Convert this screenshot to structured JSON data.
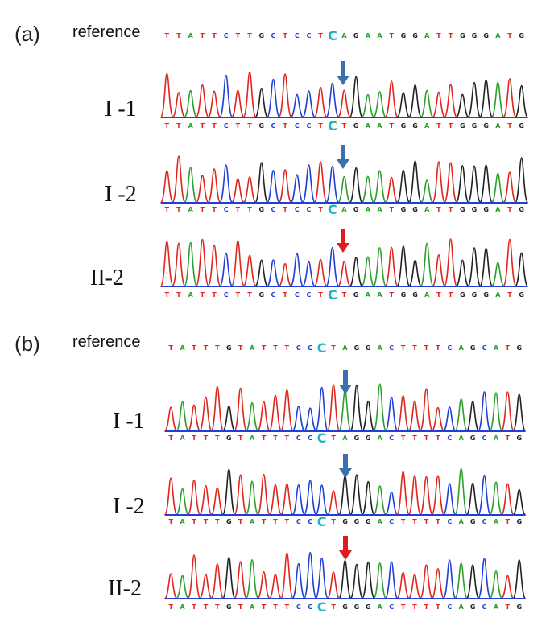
{
  "panel_a": {
    "label": "(a)",
    "reference_label": "reference",
    "highlight_index": 14,
    "reference_seq": "TTATTCTTGCTCCTCAGAATGGATTGGGATG",
    "samples": [
      {
        "label": "I -1",
        "seq": "TTATTCTTGCTCCTCTGAATGGATTGGGATG",
        "arrow_color": "#3a6fb0"
      },
      {
        "label": "I -2",
        "seq": "TTATTCTTGCTCCTCAGAATGGATTGGGATG",
        "arrow_color": "#3a6fb0"
      },
      {
        "label": "II-2",
        "seq": "TTATTCTTGCTCCTCTGAATGGATTGGGATG",
        "arrow_color": "#e01b1b"
      }
    ]
  },
  "panel_b": {
    "label": "(b)",
    "reference_label": "reference",
    "highlight_index": 13,
    "reference_seq": "TATTTGTATTTCCCTAGGACTTTTCAGCATG",
    "samples": [
      {
        "label": "I -1",
        "seq": "TATTTGTATTTCCCTAGGACTTTTCAGCATG",
        "arrow_color": "#3a6fb0"
      },
      {
        "label": "I -2",
        "seq": "TATTTGTATTTCCCTGGGACTTTTCAGCATG",
        "arrow_color": "#3a6fb0"
      },
      {
        "label": "II-2",
        "seq": "TATTTGTATTTCCCTGGGACTTTTCAGCATG",
        "arrow_color": "#e01b1b"
      }
    ]
  },
  "base_colors": {
    "A": "#2ca02c",
    "C": "#1f3fd6",
    "G": "#222222",
    "T": "#e0261e"
  }
}
